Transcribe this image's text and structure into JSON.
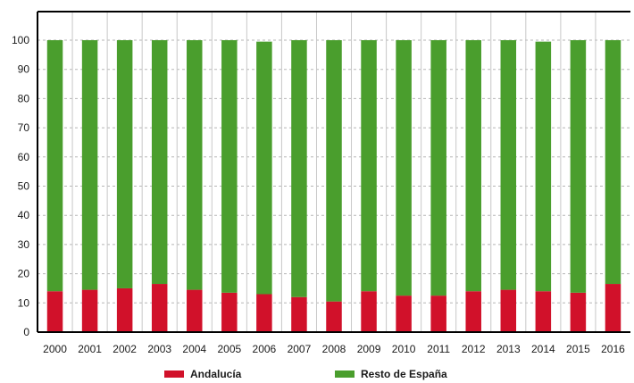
{
  "chart_data": {
    "type": "bar",
    "stacked": true,
    "categories": [
      "2000",
      "2001",
      "2002",
      "2003",
      "2004",
      "2005",
      "2006",
      "2007",
      "2008",
      "2009",
      "2010",
      "2011",
      "2012",
      "2013",
      "2014",
      "2015",
      "2016"
    ],
    "series": [
      {
        "name": "Andalucía",
        "color": "#d1112a",
        "values": [
          14,
          14.5,
          15,
          16.5,
          14.5,
          13.5,
          13,
          12,
          10.5,
          14,
          12.5,
          12.5,
          14,
          14.5,
          14,
          13.5,
          16.5
        ]
      },
      {
        "name": "Resto de España",
        "color": "#4a9e2d",
        "values": [
          86,
          85.5,
          85,
          83.5,
          85.5,
          86.5,
          86.5,
          88,
          89.5,
          86,
          87.5,
          87.5,
          86,
          85.5,
          85.5,
          86.5,
          83.5
        ]
      }
    ],
    "title": "",
    "xlabel": "",
    "ylabel": "",
    "ylim": [
      0,
      100
    ],
    "yticks": [
      "0",
      "10",
      "20",
      "30",
      "40",
      "50",
      "60",
      "70",
      "80",
      "90",
      "100"
    ],
    "grid": true,
    "legend_position": "bottom"
  }
}
